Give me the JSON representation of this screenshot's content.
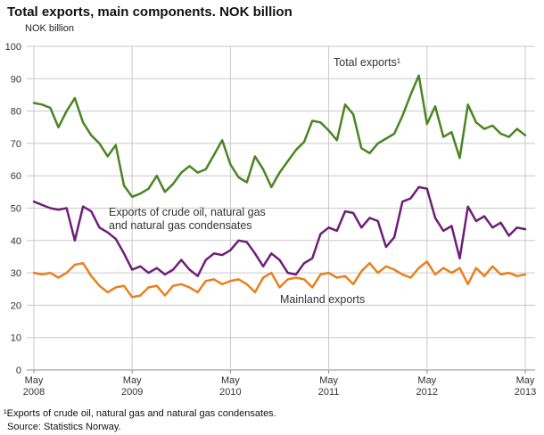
{
  "title": "Total exports, main components. NOK billion",
  "y_unit_label": "NOK billion",
  "annotations": {
    "total_exports": "Total exports¹",
    "crude_line1": "Exports of crude oil, natural gas",
    "crude_line2": "and natural gas condensates",
    "mainland": "Mainland exports"
  },
  "footnote": "¹Exports of crude oil, natural gas and natural gas condensates.",
  "source": "Source: Statistics Norway.",
  "colors": {
    "total_exports": "#4a8522",
    "crude_oil_gas": "#6e1e78",
    "mainland": "#e8801e",
    "gridline": "#c9c9c9",
    "axis": "#8c8c8c",
    "tick_text": "#333333"
  },
  "chart_data": {
    "type": "line",
    "title": "Total exports, main components. NOK billion",
    "xlabel": "",
    "ylabel": "NOK billion",
    "ylim": [
      0,
      100
    ],
    "y_ticks": [
      0,
      10,
      20,
      30,
      40,
      50,
      60,
      70,
      80,
      90,
      100
    ],
    "grid": true,
    "legend_position": "inline-labels",
    "x_tick_labels": [
      [
        "May",
        "2008"
      ],
      [
        "May",
        "2009"
      ],
      [
        "May",
        "2010"
      ],
      [
        "May",
        "2011"
      ],
      [
        "May",
        "2012"
      ],
      [
        "May",
        "2013"
      ]
    ],
    "x_tick_month_indices": [
      0,
      12,
      24,
      36,
      48,
      60
    ],
    "x_months": [
      "2008-05",
      "2008-06",
      "2008-07",
      "2008-08",
      "2008-09",
      "2008-10",
      "2008-11",
      "2008-12",
      "2009-01",
      "2009-02",
      "2009-03",
      "2009-04",
      "2009-05",
      "2009-06",
      "2009-07",
      "2009-08",
      "2009-09",
      "2009-10",
      "2009-11",
      "2009-12",
      "2010-01",
      "2010-02",
      "2010-03",
      "2010-04",
      "2010-05",
      "2010-06",
      "2010-07",
      "2010-08",
      "2010-09",
      "2010-10",
      "2010-11",
      "2010-12",
      "2011-01",
      "2011-02",
      "2011-03",
      "2011-04",
      "2011-05",
      "2011-06",
      "2011-07",
      "2011-08",
      "2011-09",
      "2011-10",
      "2011-11",
      "2011-12",
      "2012-01",
      "2012-02",
      "2012-03",
      "2012-04",
      "2012-05",
      "2012-06",
      "2012-07",
      "2012-08",
      "2012-09",
      "2012-10",
      "2012-11",
      "2012-12",
      "2013-01",
      "2013-02",
      "2013-03",
      "2013-04",
      "2013-05"
    ],
    "series": [
      {
        "id": "total-exports",
        "name": "Total exports",
        "color": "#4a8522",
        "values": [
          82.5,
          82,
          81,
          75,
          80,
          84,
          76.5,
          72.5,
          70,
          66,
          69.5,
          57,
          53.5,
          54.5,
          56,
          60,
          55,
          57.5,
          61,
          63,
          61,
          62,
          66.5,
          71,
          63.5,
          59.5,
          58,
          66,
          62,
          56.5,
          61,
          64.5,
          68,
          70.5,
          77,
          76.5,
          74,
          71,
          82,
          79,
          68.5,
          67,
          70,
          71.5,
          73,
          78.5,
          85,
          91,
          76,
          81.5,
          72,
          73.5,
          65.5,
          82,
          76.5,
          74.5,
          75.5,
          73,
          72,
          74.5,
          72.5
        ]
      },
      {
        "id": "crude-oil-gas",
        "name": "Exports of crude oil, natural gas and natural gas condensates",
        "color": "#6e1e78",
        "values": [
          52,
          51,
          50,
          49.5,
          50,
          40,
          50.5,
          49,
          44,
          42.5,
          40.5,
          36,
          31,
          32,
          30,
          31.5,
          29.5,
          31,
          34,
          31,
          29,
          34,
          36,
          35.5,
          37,
          40,
          39.5,
          36,
          32,
          36,
          34,
          30,
          29.5,
          33,
          34.5,
          42,
          44,
          43,
          49,
          48.5,
          44,
          47,
          46,
          38,
          41,
          52,
          53,
          56.5,
          56,
          47,
          43,
          44.5,
          34.5,
          50.5,
          46,
          47.5,
          44,
          45.5,
          41.5,
          44,
          43.5
        ]
      },
      {
        "id": "mainland",
        "name": "Mainland exports",
        "color": "#e8801e",
        "values": [
          30,
          29.5,
          30,
          28.5,
          30,
          32.5,
          33,
          29,
          26,
          24,
          25.5,
          26,
          22.5,
          23,
          25.5,
          26,
          23,
          26,
          26.5,
          25.5,
          24,
          27.5,
          28,
          26.5,
          27.5,
          28,
          26.5,
          24,
          28.5,
          30,
          25.5,
          28,
          28.5,
          28,
          25.5,
          29.5,
          30,
          28.5,
          29,
          26.5,
          30.5,
          33,
          30,
          32,
          31,
          29.5,
          28.5,
          31.5,
          33.5,
          29.5,
          31.5,
          30,
          31.5,
          26.5,
          31.5,
          29,
          32,
          29.5,
          30,
          29,
          29.5
        ]
      }
    ]
  }
}
